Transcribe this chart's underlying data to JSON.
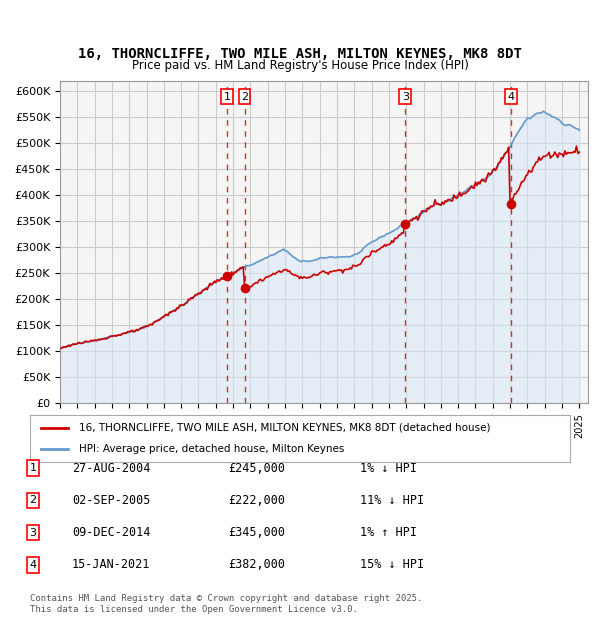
{
  "title": "16, THORNCLIFFE, TWO MILE ASH, MILTON KEYNES, MK8 8DT",
  "subtitle": "Price paid vs. HM Land Registry's House Price Index (HPI)",
  "legend_entry1": "16, THORNCLIFFE, TWO MILE ASH, MILTON KEYNES, MK8 8DT (detached house)",
  "legend_entry2": "HPI: Average price, detached house, Milton Keynes",
  "footer": "Contains HM Land Registry data © Crown copyright and database right 2025.\nThis data is licensed under the Open Government Licence v3.0.",
  "transactions": [
    {
      "label": "1",
      "date": "27-AUG-2004",
      "price": 245000,
      "pct": "1%",
      "dir": "↓",
      "x": 2004.65
    },
    {
      "label": "2",
      "date": "02-SEP-2005",
      "price": 222000,
      "pct": "11%",
      "dir": "↓",
      "x": 2005.67
    },
    {
      "label": "3",
      "date": "09-DEC-2014",
      "price": 345000,
      "pct": "1%",
      "dir": "↑",
      "x": 2014.94
    },
    {
      "label": "4",
      "date": "15-JAN-2021",
      "price": 382000,
      "pct": "15%",
      "dir": "↓",
      "x": 2021.04
    }
  ],
  "red_line_color": "#cc0000",
  "blue_line_color": "#6699cc",
  "blue_fill_color": "#d6e8f7",
  "dashed_vline_color": "#cc0000",
  "grid_color": "#cccccc",
  "bg_color": "#ffffff",
  "plot_bg_color": "#f5f5f5",
  "ylim": [
    0,
    620000
  ],
  "ytick_step": 50000,
  "xlabel_start": 1995,
  "xlabel_end": 2025
}
